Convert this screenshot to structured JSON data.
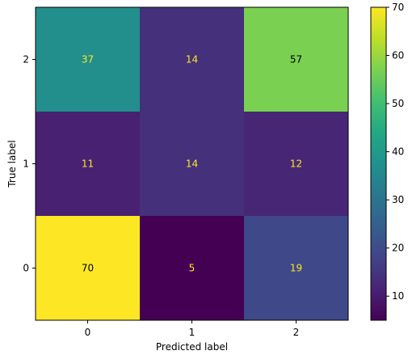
{
  "chart_data": {
    "type": "heatmap",
    "title": "",
    "xlabel": "Predicted label",
    "ylabel": "True label",
    "x_categories": [
      "0",
      "1",
      "2"
    ],
    "y_categories": [
      "2",
      "1",
      "0"
    ],
    "values": [
      [
        37,
        14,
        57
      ],
      [
        11,
        14,
        12
      ],
      [
        70,
        5,
        19
      ]
    ],
    "colorbar": {
      "colormap": "viridis",
      "range": [
        5,
        70
      ],
      "ticks": [
        10,
        20,
        30,
        40,
        50,
        60,
        70
      ]
    },
    "text_colors": {
      "on_dark": "#fde725",
      "on_light": "#000000"
    }
  }
}
